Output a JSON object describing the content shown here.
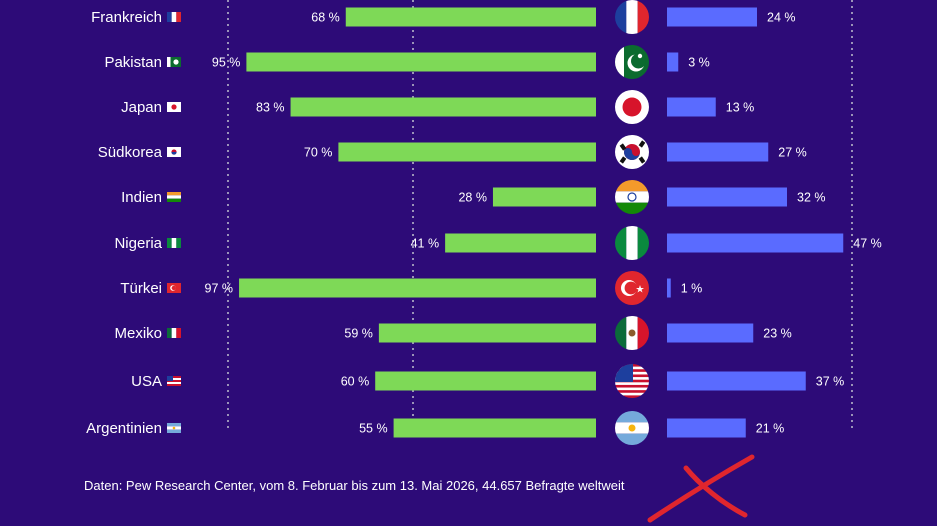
{
  "chart_data": {
    "type": "bar",
    "categories": [
      "Frankreich",
      "Pakistan",
      "Japan",
      "Südkorea",
      "Indien",
      "Nigeria",
      "Türkei",
      "Mexiko",
      "USA",
      "Argentinien"
    ],
    "series": [
      {
        "values": [
          68,
          95,
          83,
          70,
          28,
          41,
          97,
          59,
          60,
          55
        ],
        "value_labels": [
          "68 %",
          "95 %",
          "83 %",
          "70 %",
          "28 %",
          "41 %",
          "97 %",
          "59 %",
          "60 %",
          "55 %"
        ],
        "color": "#7ed957"
      },
      {
        "values": [
          24,
          3,
          13,
          27,
          32,
          47,
          1,
          23,
          37,
          21
        ],
        "value_labels": [
          "24 %",
          "3 %",
          "13 %",
          "27 %",
          "32 %",
          "47 %",
          "1 %",
          "23 %",
          "37 %",
          "21 %"
        ],
        "color": "#5a6bff"
      }
    ],
    "flag_icons": [
      "france-flag-icon",
      "pakistan-flag-icon",
      "japan-flag-icon",
      "south-korea-flag-icon",
      "india-flag-icon",
      "nigeria-flag-icon",
      "turkey-flag-icon",
      "mexico-flag-icon",
      "usa-flag-icon",
      "argentina-flag-icon"
    ],
    "grid": "dotted vertical lines",
    "background_color": "#2d0b78"
  },
  "source": "Daten: Pew Research Center, vom 8. Februar bis zum 13. Mai 2026, 44.657 Befragte weltweit",
  "annotation": {
    "icon": "red-x-mark-icon",
    "color": "#e0262e"
  }
}
